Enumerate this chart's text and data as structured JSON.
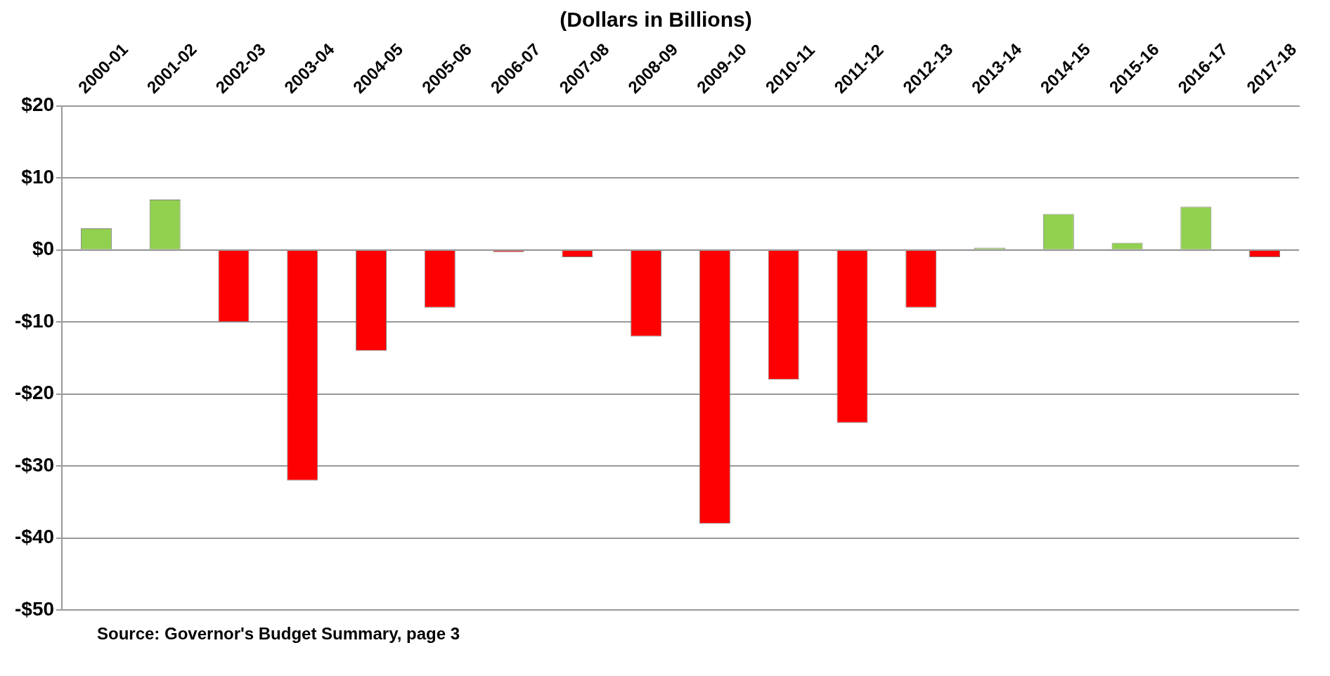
{
  "chart_data": {
    "type": "bar",
    "title": "(Dollars in Billions)",
    "categories": [
      "2000-01",
      "2001-02",
      "2002-03",
      "2003-04",
      "2004-05",
      "2005-06",
      "2006-07",
      "2007-08",
      "2008-09",
      "2009-10",
      "2010-11",
      "2011-12",
      "2012-13",
      "2013-14",
      "2014-15",
      "2015-16",
      "2016-17",
      "2017-18"
    ],
    "values": [
      3,
      7,
      -10,
      -32,
      -14,
      -8,
      -0.3,
      -1,
      -12,
      -38,
      -18,
      -24,
      -8,
      0.3,
      5,
      1,
      6,
      -1
    ],
    "colors": [
      "#92d050",
      "#92d050",
      "#ff0000",
      "#ff0000",
      "#ff0000",
      "#ff0000",
      "#ff0000",
      "#ff0000",
      "#ff0000",
      "#ff0000",
      "#ff0000",
      "#ff0000",
      "#ff0000",
      "#92d050",
      "#92d050",
      "#92d050",
      "#92d050",
      "#ff0000"
    ],
    "ylim": [
      -50,
      20
    ],
    "yticks": [
      {
        "value": -50,
        "label": "-$50"
      },
      {
        "value": -40,
        "label": "-$40"
      },
      {
        "value": -30,
        "label": "-$30"
      },
      {
        "value": -20,
        "label": "-$20"
      },
      {
        "value": -10,
        "label": "-$10"
      },
      {
        "value": 0,
        "label": "$0"
      },
      {
        "value": 10,
        "label": "$10"
      },
      {
        "value": 20,
        "label": "$20"
      }
    ],
    "grid": "y",
    "annotations": [
      "Source: Governor's Budget Summary, page 3"
    ]
  }
}
